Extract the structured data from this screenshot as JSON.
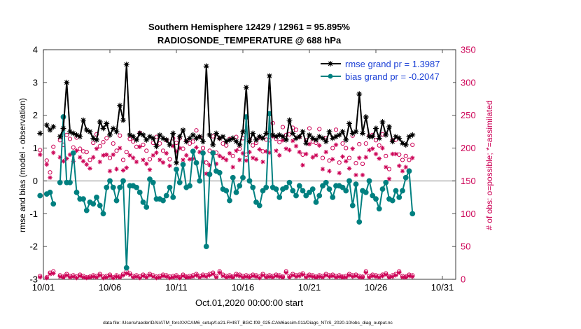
{
  "chart_data": {
    "type": "line",
    "title": "Southern Hemisphere 12429 / 12961 = 95.895%",
    "subtitle": "RADIOSONDE_TEMPERATURE @ 688 hPa",
    "xlabel": "Oct.01,2020 00:00:00 start",
    "ylabel_left": "rmse and bias (model - observation)",
    "ylabel_right": "# of obs: o=possible; *=assimilated",
    "footer": "data file: /Users/raeder/DAI/ATM_forcXX/CAM6_setup/f.e21.FHIST_BGC.f09_025.CAM6assim.011/Diags_NTrS_2020-10/obs_diag_output.nc",
    "xlim": [
      0,
      31
    ],
    "ylim_left": [
      -3,
      4
    ],
    "ylim_right": [
      0,
      350
    ],
    "x_ticks": [
      {
        "value": 0,
        "label": "10/01"
      },
      {
        "value": 5,
        "label": "10/06"
      },
      {
        "value": 10,
        "label": "10/11"
      },
      {
        "value": 15,
        "label": "10/16"
      },
      {
        "value": 20,
        "label": "10/21"
      },
      {
        "value": 25,
        "label": "10/26"
      },
      {
        "value": 30,
        "label": "10/31"
      }
    ],
    "y_ticks_left": [
      -3,
      -2,
      -1,
      0,
      1,
      2,
      3,
      4
    ],
    "y_ticks_right": [
      0,
      50,
      100,
      150,
      200,
      250,
      300,
      350
    ],
    "legend": [
      {
        "label": "rmse grand pr = 1.3987",
        "series": "rmse"
      },
      {
        "label": "bias grand pr = -0.2047",
        "series": "bias"
      }
    ],
    "colors": {
      "rmse": "#000000",
      "bias": "#008080",
      "obs": "#cc0055",
      "zero": "#bbbbbb"
    },
    "x_start": -0.25,
    "x_step": 0.25,
    "series": [
      {
        "name": "rmse",
        "axis": "left",
        "values": [
          1.45,
          null,
          1.7,
          1.55,
          1.65,
          null,
          1.35,
          1.6,
          3.0,
          1.5,
          1.45,
          1.4,
          1.35,
          1.85,
          1.55,
          1.5,
          1.3,
          1.25,
          1.8,
          1.6,
          1.75,
          1.4,
          1.6,
          1.5,
          2.3,
          1.85,
          3.55,
          1.4,
          1.35,
          1.25,
          1.45,
          1.4,
          1.25,
          1.35,
          1.3,
          1.05,
          1.4,
          1.3,
          1.25,
          1.1,
          1.45,
          0.55,
          1.35,
          1.55,
          1.2,
          1.3,
          1.4,
          1.3,
          1.35,
          1.2,
          3.5,
          1.4,
          1.1,
          1.45,
          1.3,
          1.35,
          1.2,
          1.25,
          1.3,
          1.2,
          1.1,
          1.5,
          2.85,
          1.2,
          1.45,
          1.25,
          1.35,
          1.3,
          1.45,
          3.2,
          1.4,
          1.35,
          1.4,
          1.35,
          1.25,
          1.85,
          1.45,
          1.3,
          1.35,
          1.5,
          1.15,
          1.4,
          1.3,
          1.25,
          1.35,
          1.3,
          1.2,
          1.5,
          1.3,
          1.35,
          1.4,
          1.5,
          1.25,
          1.75,
          1.45,
          1.5,
          2.65,
          1.45,
          1.95,
          1.35,
          1.35,
          1.6,
          1.3,
          1.8,
          1.4,
          1.65,
          1.2,
          1.35,
          1.3,
          1.15,
          1.1,
          1.35,
          1.4
        ]
      },
      {
        "name": "bias",
        "axis": "left",
        "values": [
          -0.45,
          null,
          -0.4,
          -0.35,
          -0.7,
          null,
          -0.05,
          1.95,
          -0.05,
          -0.05,
          0.85,
          -0.35,
          -0.55,
          -0.55,
          -0.9,
          -0.65,
          -0.7,
          -0.5,
          -0.75,
          -1.0,
          -0.2,
          0.0,
          -0.2,
          -0.6,
          -0.2,
          0.0,
          -2.65,
          -0.15,
          -0.15,
          -0.2,
          -0.35,
          -0.65,
          -0.8,
          0.05,
          -0.05,
          -0.55,
          -0.55,
          -0.6,
          -0.45,
          -0.2,
          -0.5,
          0.35,
          -0.05,
          0.5,
          -0.2,
          -0.15,
          0.9,
          0.55,
          0.0,
          0.85,
          -2.0,
          0.2,
          0.85,
          0.3,
          0.25,
          -0.25,
          -0.3,
          -0.6,
          0.1,
          -0.35,
          -0.15,
          0.1,
          1.95,
          0.0,
          -0.2,
          -0.65,
          -0.75,
          -0.3,
          -0.2,
          2.05,
          -0.2,
          -0.25,
          -0.5,
          -0.25,
          -0.2,
          -0.05,
          -0.3,
          -0.45,
          -0.15,
          -0.3,
          -0.45,
          -0.35,
          -0.25,
          -0.65,
          -0.45,
          -0.15,
          -0.05,
          -0.25,
          -0.5,
          -0.15,
          -0.15,
          -0.2,
          -0.3,
          0.0,
          -0.75,
          -0.1,
          -1.25,
          -0.3,
          -0.35,
          0.0,
          -0.45,
          -0.55,
          -0.85,
          -0.25,
          -0.05,
          -0.55,
          -0.6,
          -0.3,
          -0.5,
          -0.3,
          0.1,
          0.3,
          -1.0
        ]
      },
      {
        "name": "obs_possible",
        "axis": "right",
        "marker": "o",
        "values": [
          5,
          null,
          3,
          10,
          12,
          null,
          6,
          4,
          8,
          5,
          6,
          4,
          7,
          5,
          3,
          4,
          6,
          5,
          8,
          4,
          5,
          7,
          3,
          6,
          4,
          8,
          12,
          9,
          5,
          6,
          4,
          7,
          5,
          8,
          6,
          4,
          5,
          7,
          6,
          4,
          5,
          6,
          3,
          7,
          4,
          5,
          6,
          8,
          5,
          7,
          6,
          8,
          10,
          5,
          12,
          7,
          5,
          6,
          4,
          8,
          7,
          5,
          6,
          5,
          7,
          6,
          4,
          8,
          5,
          6,
          5,
          7,
          6,
          4,
          12,
          5,
          8,
          6,
          7,
          9,
          5,
          7,
          6,
          4,
          6,
          5,
          8,
          6,
          7,
          5,
          6,
          4,
          5,
          8,
          6,
          7,
          5,
          4,
          12,
          5,
          7,
          6,
          5,
          7,
          9,
          4,
          6,
          8,
          12,
          5,
          4,
          7,
          6
        ]
      },
      {
        "name": "obs_assimilated",
        "axis": "right",
        "marker": "*",
        "values": [
          3,
          null,
          2,
          8,
          9,
          null,
          4,
          3,
          6,
          3,
          4,
          2,
          5,
          3,
          2,
          3,
          4,
          3,
          6,
          2,
          3,
          5,
          2,
          4,
          3,
          6,
          9,
          7,
          3,
          4,
          2,
          5,
          3,
          6,
          4,
          2,
          3,
          5,
          4,
          2,
          3,
          4,
          2,
          5,
          3,
          3,
          4,
          6,
          3,
          5,
          4,
          6,
          8,
          3,
          10,
          5,
          3,
          4,
          3,
          6,
          5,
          3,
          4,
          3,
          5,
          4,
          2,
          6,
          3,
          4,
          3,
          5,
          4,
          3,
          10,
          3,
          6,
          4,
          5,
          7,
          3,
          5,
          4,
          3,
          4,
          3,
          6,
          4,
          5,
          3,
          4,
          3,
          3,
          6,
          4,
          5,
          3,
          3,
          10,
          3,
          5,
          4,
          3,
          5,
          7,
          3,
          4,
          6,
          10,
          3,
          3,
          5,
          4
        ]
      },
      {
        "name": "obs_possible_upper",
        "axis": "right",
        "marker": "o",
        "values": [
          197,
          null,
          181,
          163,
          202,
          null,
          212,
          205,
          220,
          214,
          201,
          216,
          199,
          195,
          194,
          182,
          208,
          221,
          203,
          209,
          215,
          185,
          207,
          196,
          219,
          182,
          194,
          214,
          210,
          202,
          223,
          205,
          196,
          183,
          208,
          217,
          207,
          196,
          212,
          183,
          215,
          208,
          215,
          199,
          211,
          207,
          210,
          227,
          217,
          200,
          178,
          196,
          218,
          193,
          215,
          207,
          204,
          214,
          188,
          217,
          199,
          215,
          190,
          213,
          204,
          208,
          216,
          195,
          213,
          212,
          238,
          214,
          209,
          232,
          220,
          221,
          231,
          228,
          217,
          190,
          212,
          230,
          210,
          208,
          229,
          185,
          215,
          181,
          200,
          228,
          178,
          207,
          200,
          185,
          219,
          177,
          206,
          176,
          207,
          219,
          220,
          212,
          204,
          221,
          188,
          168,
          212,
          213,
          190,
          182,
          188,
          182,
          205
        ]
      },
      {
        "name": "obs_assimilated_upper",
        "axis": "right",
        "marker": "*",
        "values": [
          190,
          null,
          175,
          155,
          193,
          null,
          186,
          180,
          184,
          190,
          180,
          196,
          186,
          180,
          175,
          169,
          186,
          199,
          179,
          189,
          190,
          165,
          190,
          168,
          200,
          166,
          170,
          189,
          185,
          179,
          202,
          182,
          176,
          167,
          189,
          193,
          182,
          178,
          192,
          173,
          203,
          195,
          200,
          182,
          189,
          183,
          184,
          201,
          194,
          179,
          161,
          174,
          194,
          176,
          188,
          185,
          182,
          192,
          171,
          196,
          182,
          192,
          181,
          194,
          185,
          183,
          198,
          179,
          195,
          193,
          218,
          196,
          189,
          212,
          199,
          197,
          211,
          203,
          194,
          174,
          191,
          206,
          186,
          189,
          204,
          168,
          194,
          165,
          183,
          205,
          162,
          187,
          180,
          169,
          199,
          159,
          185,
          159,
          186,
          197,
          199,
          191,
          184,
          200,
          171,
          153,
          191,
          191,
          173,
          165,
          171,
          166,
          185
        ]
      }
    ]
  }
}
